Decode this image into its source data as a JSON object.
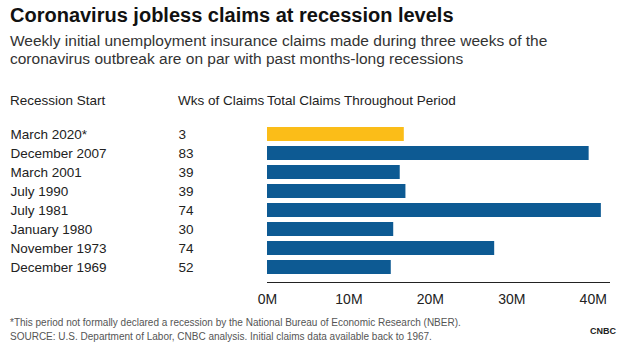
{
  "chart_data": {
    "type": "bar",
    "orientation": "horizontal",
    "title": "Coronavirus jobless claims at recession levels",
    "subtitle": "Weekly initial unemployment insurance claims made during three weeks of the coronavirus outbreak are on par with past months-long recessions",
    "column_titles": [
      "Recession Start",
      "Wks of Claims",
      "Total Claims Throughout Period"
    ],
    "categories": [
      "March 2020*",
      "December 2007",
      "March 2001",
      "July 1990",
      "July 1981",
      "January 1980",
      "November 1973",
      "December 1969"
    ],
    "weeks": [
      3,
      83,
      39,
      39,
      74,
      30,
      74,
      52
    ],
    "values": [
      16.8,
      39.5,
      16.3,
      17.0,
      41.0,
      15.5,
      27.9,
      15.2
    ],
    "colors": [
      "#fbbd18",
      "#0d5a93",
      "#0d5a93",
      "#0d5a93",
      "#0d5a93",
      "#0d5a93",
      "#0d5a93",
      "#0d5a93"
    ],
    "xlim": [
      0,
      42
    ],
    "xticks": [
      {
        "value": 0,
        "label": "0M"
      },
      {
        "value": 10,
        "label": "10M"
      },
      {
        "value": 20,
        "label": "20M"
      },
      {
        "value": 30,
        "label": "30M"
      },
      {
        "value": 40,
        "label": "40M"
      }
    ],
    "grid": false,
    "notes": [
      "*This period not formally declared a recession by the National Bureau of Economic Research (NBER).",
      "SOURCE: U.S. Department of Labor, CNBC analysis. Initial claims data available back to 1967."
    ],
    "logo": "CNBC"
  }
}
